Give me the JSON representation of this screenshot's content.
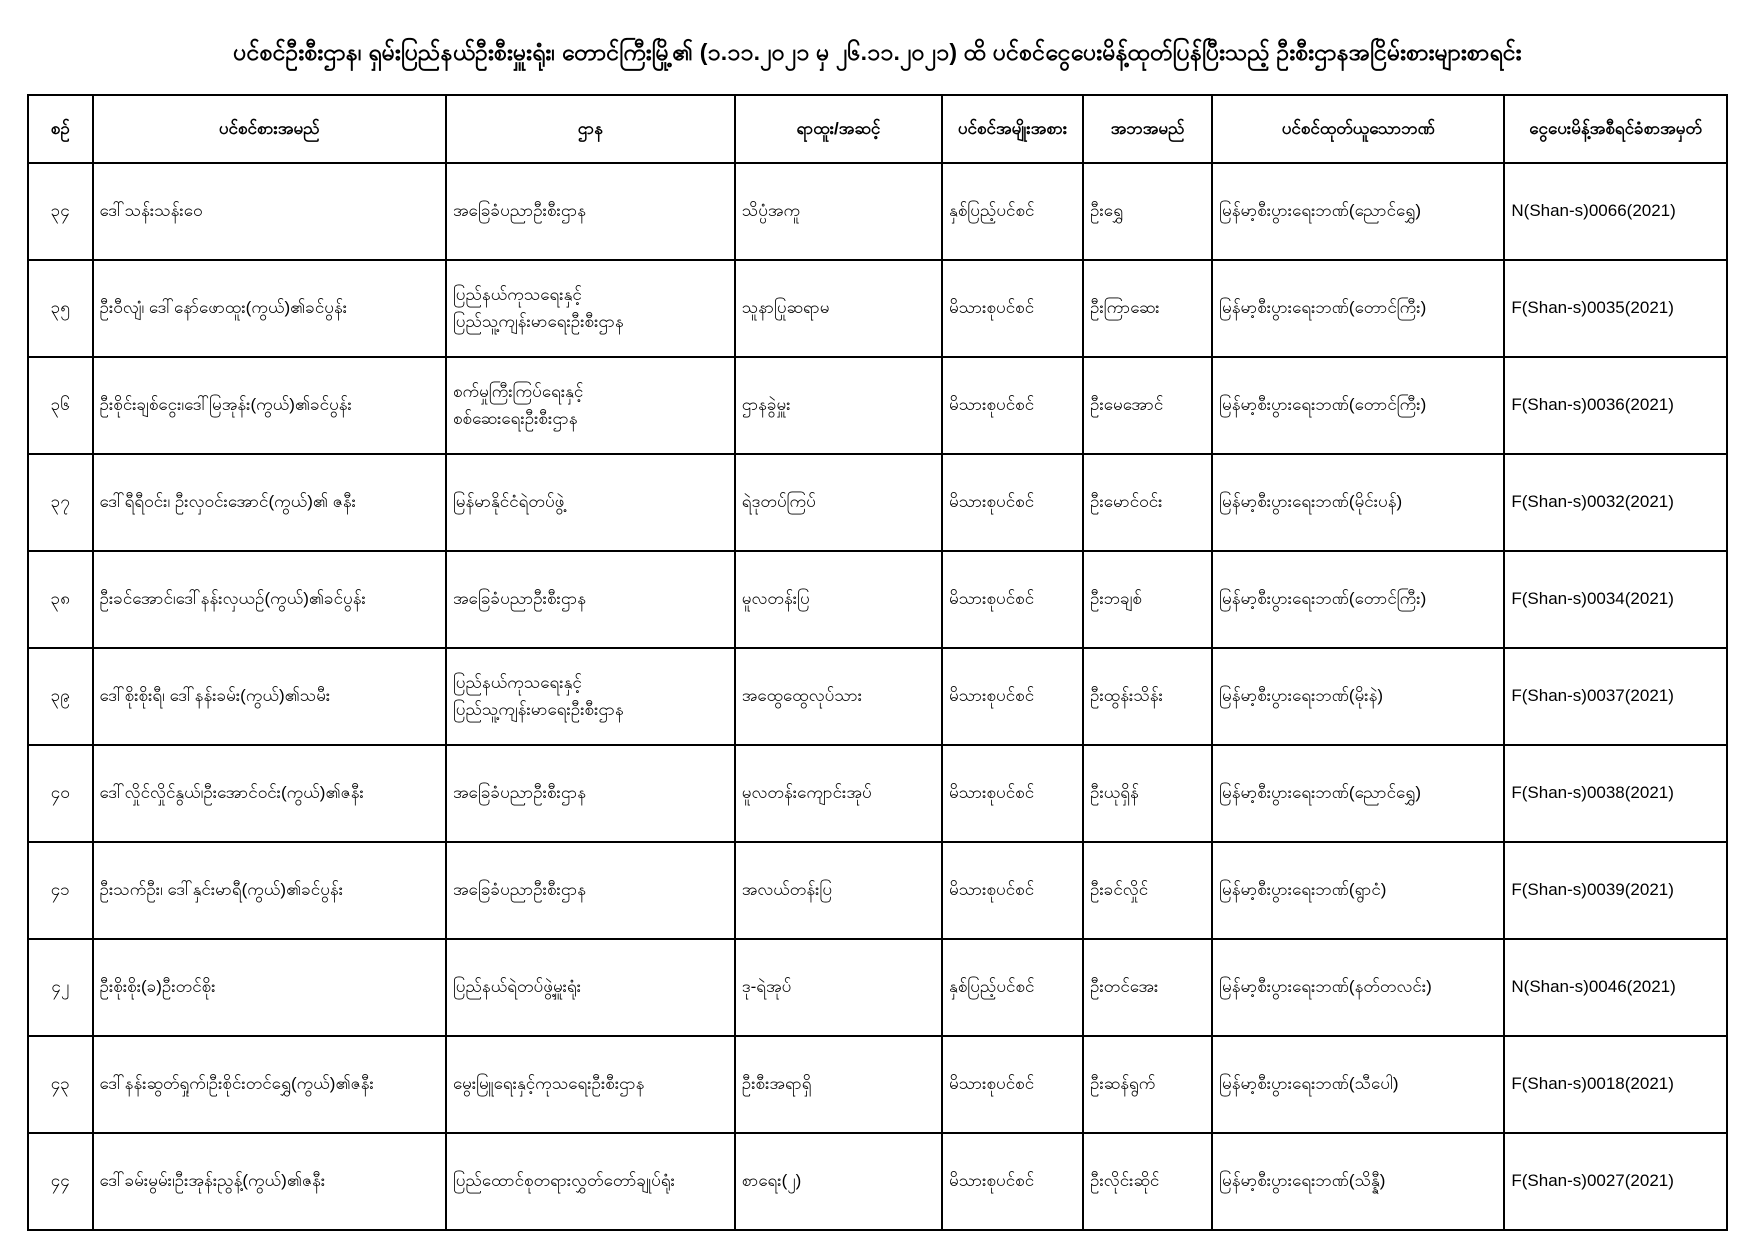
{
  "document": {
    "title": "ပင်စင်ဦးစီးဌာန၊ ရှမ်းပြည်နယ်ဦးစီးမှူးရုံး၊ တောင်ကြီးမြို့၏ (၁.၁၁.၂၀၂၁ မှ ၂၆.၁၁.၂၀၂၁) ထိ ပင်စင်ငွေပေးမိန့်ထုတ်ပြန်ပြီးသည့် ဦးစီးဌာနအငြိမ်းစားများစာရင်း"
  },
  "table": {
    "headers": [
      "စဉ်",
      "ပင်စင်စားအမည်",
      "ဌာန",
      "ရာထူး/အဆင့်",
      "ပင်စင်အမျိုးအစား",
      "အဘအမည်",
      "ပင်စင်ထုတ်ယူသောဘဏ်",
      "ငွေပေးမိန့်အစီရင်ခံစာအမှတ်"
    ],
    "rows": [
      {
        "sn": "၃၄",
        "pensioner": "ဒေါ်သန်းသန်းဝေ",
        "department": "အခြေခံပညာဦးစီးဌာန",
        "position": "သိပ္ပံအကူ",
        "pension_type": "နှစ်ပြည့်ပင်စင်",
        "father": "ဦးရွှေ",
        "bank": "မြန်မာ့စီးပွားရေးဘဏ်(ညောင်ရွှေ)",
        "serial": "N(Shan-s)0066(2021)"
      },
      {
        "sn": "၃၅",
        "pensioner": "ဦးဝီလျံ၊ ဒေါ်နော်ဖောထူး(ကွယ်)၏ခင်ပွန်း",
        "department": "ပြည်နယ်ကုသရေးနှင့်\nပြည်သူ့ကျန်းမာရေးဦးစီးဌာန",
        "position": "သူနာပြုဆရာမ",
        "pension_type": "မိသားစုပင်စင်",
        "father": "ဦးကြာဆေး",
        "bank": "မြန်မာ့စီးပွားရေးဘဏ်(တောင်ကြီး)",
        "serial": "F(Shan-s)0035(2021)"
      },
      {
        "sn": "၃၆",
        "pensioner": "ဦးစိုင်းချစ်ငွေး၊ဒေါ်မြအုန်း(ကွယ်)၏ခင်ပွန်း",
        "department": "စက်မှုကြီးကြပ်ရေးနှင့်\nစစ်ဆေးရေးဦးစီးဌာန",
        "position": "ဌာနခွဲမှူး",
        "pension_type": "မိသားစုပင်စင်",
        "father": "ဦးမေအောင်",
        "bank": "မြန်မာ့စီးပွားရေးဘဏ်(တောင်ကြီး)",
        "serial": "F(Shan-s)0036(2021)"
      },
      {
        "sn": "၃၇",
        "pensioner": "ဒေါ်ရီရီဝင်း၊ ဦးလှဝင်းအောင်(ကွယ်)၏ ဇနီး",
        "department": "မြန်မာနိုင်ငံရဲတပ်ဖွဲ့",
        "position": "ရဲဒုတပ်ကြပ်",
        "pension_type": "မိသားစုပင်စင်",
        "father": "ဦးမောင်ဝင်း",
        "bank": "မြန်မာ့စီးပွားရေးဘဏ်(မိုင်းပန်)",
        "serial": "F(Shan-s)0032(2021)"
      },
      {
        "sn": "၃၈",
        "pensioner": "ဦးခင်အောင်၊ဒေါ်နန်းလှယဉ်(ကွယ်)၏ခင်ပွန်း",
        "department": "အခြေခံပညာဦးစီးဌာန",
        "position": "မူလတန်းပြ",
        "pension_type": "မိသားစုပင်စင်",
        "father": "ဦးဘချစ်",
        "bank": "မြန်မာ့စီးပွားရေးဘဏ်(တောင်ကြီး)",
        "serial": "F(Shan-s)0034(2021)"
      },
      {
        "sn": "၃၉",
        "pensioner": "ဒေါ်စိုးစိုးရီ၊ ဒေါ်နန်းခမ်း(ကွယ်)၏သမီး",
        "department": "ပြည်နယ်ကုသရေးနှင့်\nပြည်သူ့ကျန်းမာရေးဦးစီးဌာန",
        "position": "အထွေထွေလုပ်သား",
        "pension_type": "မိသားစုပင်စင်",
        "father": "ဦးထွန်းသိန်း",
        "bank": "မြန်မာ့စီးပွားရေးဘဏ်(မိုးနဲ)",
        "serial": "F(Shan-s)0037(2021)"
      },
      {
        "sn": "၄၀",
        "pensioner": "ဒေါ်လှိုင်လှိုင်နွယ်၊ဦးအောင်ဝင်း(ကွယ်)၏ဇနီး",
        "department": "အခြေခံပညာဦးစီးဌာန",
        "position": "မူလတန်းကျောင်းအုပ်",
        "pension_type": "မိသားစုပင်စင်",
        "father": "ဦးယုရှိန်",
        "bank": "မြန်မာ့စီးပွားရေးဘဏ်(ညောင်ရွှေ)",
        "serial": "F(Shan-s)0038(2021)"
      },
      {
        "sn": "၄၁",
        "pensioner": "ဦးသက်ဦး၊ ဒေါ်နှင်းမာရီ(ကွယ်)၏ခင်ပွန်း",
        "department": "အခြေခံပညာဦးစီးဌာန",
        "position": "အလယ်တန်းပြ",
        "pension_type": "မိသားစုပင်စင်",
        "father": "ဦးခင်လှိုင်",
        "bank": "မြန်မာ့စီးပွားရေးဘဏ်(ရွာငံ)",
        "serial": "F(Shan-s)0039(2021)"
      },
      {
        "sn": "၄၂",
        "pensioner": "ဦးစိုးစိုး(ခ)ဦးတင်စိုး",
        "department": "ပြည်နယ်ရဲတပ်ဖွဲ့မှူးရုံး",
        "position": "ဒု-ရဲအုပ်",
        "pension_type": "နှစ်ပြည့်ပင်စင်",
        "father": "ဦးတင်အေး",
        "bank": "မြန်မာ့စီးပွားရေးဘဏ်(နတ်တလင်း)",
        "serial": "N(Shan-s)0046(2021)"
      },
      {
        "sn": "၄၃",
        "pensioner": "ဒေါ်နန်းဆွတ်ရှုက်၊ဦးစိုင်းတင်ရွှေ(ကွယ်)၏ဇနီး",
        "department": "မွေးမြူရေးနှင့်ကုသရေးဦးစီးဌာန",
        "position": "ဦးစီးအရာရှိ",
        "pension_type": "မိသားစုပင်စင်",
        "father": "ဦးဆန်ရွက်",
        "bank": "မြန်မာ့စီးပွားရေးဘဏ်(သီပေါ)",
        "serial": "F(Shan-s)0018(2021)"
      },
      {
        "sn": "၄၄",
        "pensioner": "ဒေါ်ခမ်းမွမ်း၊ဦးအုန်းညွန့်(ကွယ်)၏ဇနီး",
        "department": "ပြည်ထောင်စုတရားလွှတ်တော်ချုပ်ရုံး",
        "position": "စာရေး(၂)",
        "pension_type": "မိသားစုပင်စင်",
        "father": "ဦးလိုင်းဆိုင်",
        "bank": "မြန်မာ့စီးပွားရေးဘဏ်(သိန္နီ)",
        "serial": "F(Shan-s)0027(2021)"
      }
    ]
  }
}
